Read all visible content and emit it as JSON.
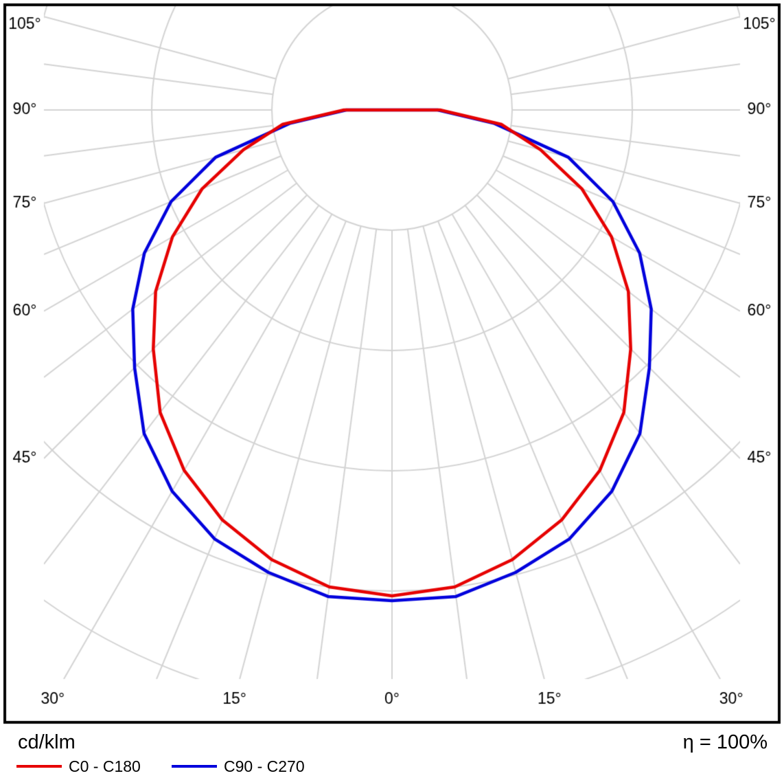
{
  "chart_data": {
    "type": "polar",
    "description": "Polar luminous intensity distribution curve (photometric diagram), gamma measured from nadir (0° pointing down), values in cd/klm",
    "unit_label": "cd/klm",
    "efficiency_label": "η = 100%",
    "gamma_deg": [
      0,
      7.5,
      15,
      22.5,
      30,
      37.5,
      45,
      52.5,
      60,
      67.5,
      75,
      82.5,
      90,
      97.5,
      105
    ],
    "series": [
      {
        "name": "C0 - C180",
        "color": "#e60000",
        "values_cd_per_klm": [
          404,
          400,
          387,
          369,
          346,
          317,
          281,
          248,
          211,
          171,
          128,
          92,
          40,
          0,
          0
        ]
      },
      {
        "name": "C90 - C270",
        "color": "#0000dc",
        "values_cd_per_klm": [
          408,
          408,
          398,
          386,
          366,
          339,
          303,
          272,
          238,
          199,
          152,
          86,
          38,
          0,
          0
        ]
      }
    ],
    "grid": {
      "ring_values_cd_per_klm": [
        100,
        200,
        300,
        400,
        500,
        600
      ],
      "radial_step_deg": 7.5,
      "angle_label_step_deg": 15,
      "angle_label_max_deg": 105,
      "color": "#d3d3d3"
    },
    "angle_label_texts": [
      "0°",
      "15°",
      "30°",
      "45°",
      "60°",
      "75°",
      "90°",
      "105°"
    ],
    "angle_labels_left": [
      "105°",
      "90°",
      "75°",
      "60°",
      "45°"
    ],
    "angle_labels_bottom": [
      "30°",
      "15°",
      "0°",
      "15°",
      "30°"
    ],
    "angle_labels_right": [
      "105°",
      "90°",
      "75°",
      "60°",
      "45°"
    ]
  }
}
